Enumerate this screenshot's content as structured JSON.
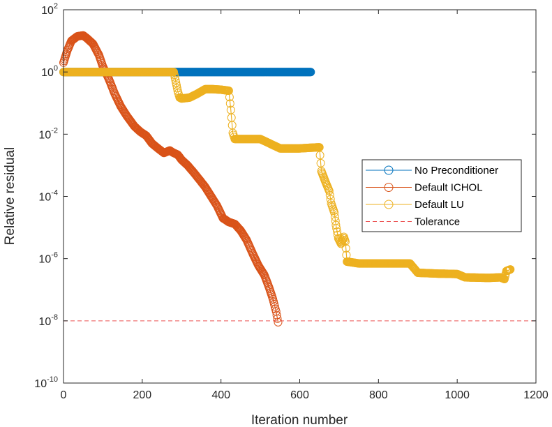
{
  "chart_data": {
    "type": "line",
    "xlabel": "Iteration number",
    "ylabel": "Relative residual",
    "xlim": [
      0,
      1200
    ],
    "ylim_exponent": [
      -10,
      2
    ],
    "yscale": "log",
    "x_ticks": [
      0,
      200,
      400,
      600,
      800,
      1000,
      1200
    ],
    "y_ticks": [
      {
        "base": "10",
        "exp": "2"
      },
      {
        "base": "10",
        "exp": "0"
      },
      {
        "base": "10",
        "exp": "-2"
      },
      {
        "base": "10",
        "exp": "-4"
      },
      {
        "base": "10",
        "exp": "-6"
      },
      {
        "base": "10",
        "exp": "-8"
      },
      {
        "base": "10",
        "exp": "-10"
      }
    ],
    "grid": false,
    "legend_position": "right",
    "series": [
      {
        "name": "No Preconditioner",
        "color": "#0072BD",
        "marker": "circle",
        "points": [
          [
            0,
            1.0
          ],
          [
            100,
            1.0
          ],
          [
            200,
            1.0
          ],
          [
            300,
            1.0
          ],
          [
            400,
            1.0
          ],
          [
            500,
            1.0
          ],
          [
            600,
            1.0
          ],
          [
            628,
            1.0
          ]
        ]
      },
      {
        "name": "Default ICHOL",
        "color": "#D95319",
        "marker": "circle",
        "points": [
          [
            0,
            2.0
          ],
          [
            10,
            5.0
          ],
          [
            20,
            10.0
          ],
          [
            35,
            14.0
          ],
          [
            50,
            15.0
          ],
          [
            60,
            12.0
          ],
          [
            75,
            8.0
          ],
          [
            90,
            3.5
          ],
          [
            100,
            1.5
          ],
          [
            115,
            0.6
          ],
          [
            130,
            0.2
          ],
          [
            145,
            0.08
          ],
          [
            160,
            0.04
          ],
          [
            180,
            0.018
          ],
          [
            195,
            0.012
          ],
          [
            210,
            0.009
          ],
          [
            225,
            0.005
          ],
          [
            240,
            0.0035
          ],
          [
            255,
            0.0025
          ],
          [
            270,
            0.003
          ],
          [
            280,
            0.0025
          ],
          [
            290,
            0.0022
          ],
          [
            300,
            0.0015
          ],
          [
            315,
            0.001
          ],
          [
            330,
            0.0006
          ],
          [
            345,
            0.00035
          ],
          [
            360,
            0.0002
          ],
          [
            375,
            0.0001
          ],
          [
            390,
            5e-05
          ],
          [
            405,
            2e-05
          ],
          [
            420,
            1.5e-05
          ],
          [
            435,
            1.3e-05
          ],
          [
            450,
            8e-06
          ],
          [
            465,
            4e-06
          ],
          [
            480,
            1.5e-06
          ],
          [
            495,
            6e-07
          ],
          [
            510,
            3e-07
          ],
          [
            522,
            1.2e-07
          ],
          [
            532,
            5e-08
          ],
          [
            540,
            2e-08
          ],
          [
            545,
            9e-09
          ]
        ]
      },
      {
        "name": "Default LU",
        "color": "#EDB120",
        "marker": "circle",
        "points": [
          [
            0,
            1.0
          ],
          [
            100,
            1.0
          ],
          [
            200,
            1.0
          ],
          [
            280,
            1.0
          ],
          [
            290,
            0.25
          ],
          [
            295,
            0.15
          ],
          [
            300,
            0.14
          ],
          [
            320,
            0.15
          ],
          [
            340,
            0.2
          ],
          [
            360,
            0.28
          ],
          [
            380,
            0.28
          ],
          [
            400,
            0.27
          ],
          [
            420,
            0.25
          ],
          [
            425,
            0.06
          ],
          [
            430,
            0.011
          ],
          [
            435,
            0.007
          ],
          [
            500,
            0.007
          ],
          [
            550,
            0.0035
          ],
          [
            600,
            0.0035
          ],
          [
            650,
            0.0038
          ],
          [
            655,
            0.00065
          ],
          [
            665,
            0.0003
          ],
          [
            675,
            0.00015
          ],
          [
            680,
            6e-05
          ],
          [
            688,
            3e-05
          ],
          [
            692,
            1.2e-05
          ],
          [
            698,
            4.5e-06
          ],
          [
            705,
            3e-06
          ],
          [
            712,
            5e-06
          ],
          [
            716,
            3.5e-06
          ],
          [
            720,
            8e-07
          ],
          [
            750,
            7e-07
          ],
          [
            800,
            7e-07
          ],
          [
            880,
            7e-07
          ],
          [
            900,
            3.5e-07
          ],
          [
            950,
            3.3e-07
          ],
          [
            1000,
            3.2e-07
          ],
          [
            1020,
            2.5e-07
          ],
          [
            1080,
            2.4e-07
          ],
          [
            1110,
            2.5e-07
          ],
          [
            1120,
            2.2e-07
          ],
          [
            1125,
            4e-07
          ],
          [
            1135,
            4.5e-07
          ]
        ]
      },
      {
        "name": "Tolerance",
        "color": "#EB5050",
        "marker": "none",
        "dashed": true,
        "points": [
          [
            0,
            1e-08
          ],
          [
            1200,
            1e-08
          ]
        ]
      }
    ]
  }
}
